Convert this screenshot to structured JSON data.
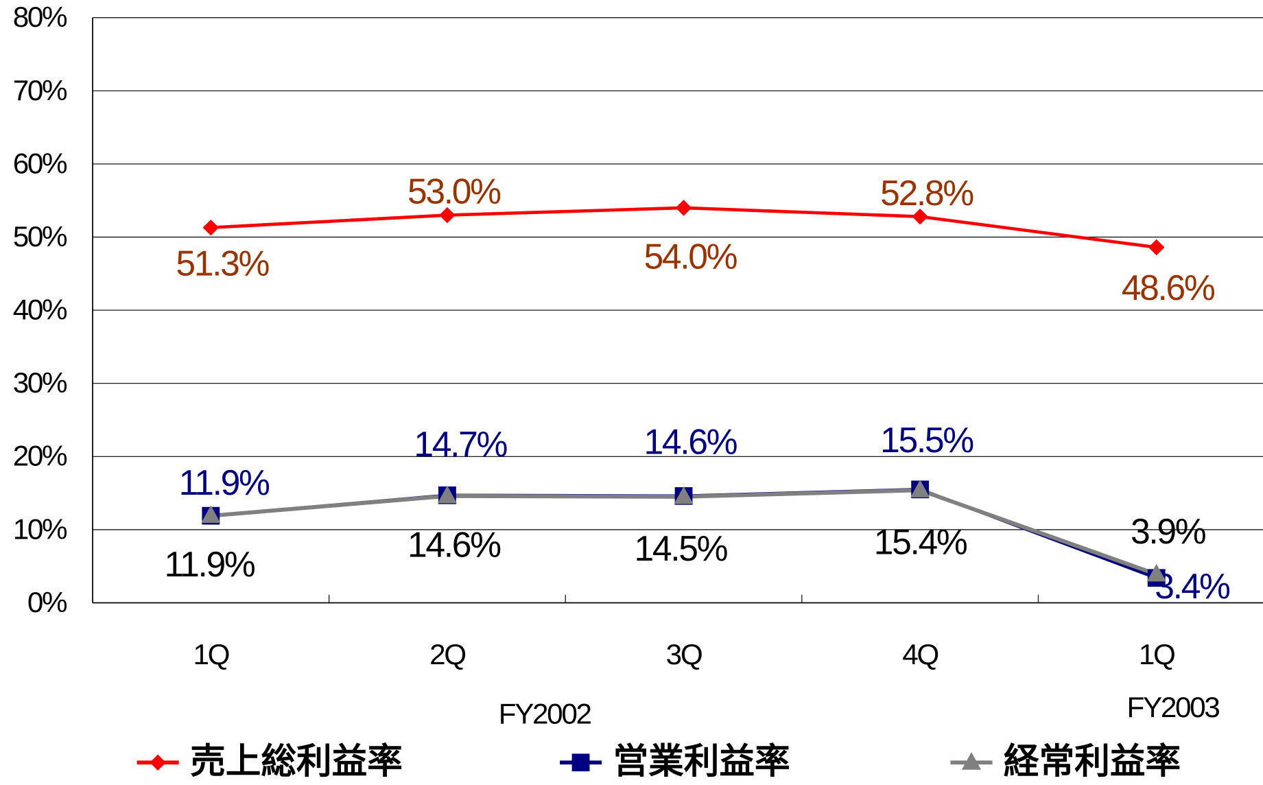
{
  "chart_data": {
    "type": "line",
    "categories": [
      "1Q",
      "2Q",
      "3Q",
      "4Q",
      "1Q"
    ],
    "group_labels": [
      "FY2002",
      "FY2003"
    ],
    "series": [
      {
        "name": "売上総利益率",
        "color": "#ff0000",
        "label_color": "#993300",
        "marker": "diamond",
        "values": [
          51.3,
          53.0,
          54.0,
          52.8,
          48.6
        ],
        "value_labels": [
          "51.3%",
          "53.0%",
          "54.0%",
          "52.8%",
          "48.6%"
        ]
      },
      {
        "name": "営業利益率",
        "color": "#000080",
        "label_color": "#000080",
        "marker": "square",
        "values": [
          11.9,
          14.7,
          14.6,
          15.5,
          3.4
        ],
        "value_labels": [
          "11.9%",
          "14.7%",
          "14.6%",
          "15.5%",
          "3.4%"
        ]
      },
      {
        "name": "経常利益率",
        "color": "#808080",
        "label_color": "#000000",
        "marker": "triangle",
        "values": [
          11.9,
          14.6,
          14.5,
          15.4,
          3.9
        ],
        "value_labels": [
          "11.9%",
          "14.6%",
          "14.5%",
          "15.4%",
          "3.9%"
        ]
      }
    ],
    "ylim": [
      0,
      80
    ],
    "yticks": [
      {
        "value": 0,
        "label": "0%"
      },
      {
        "value": 10,
        "label": "10%"
      },
      {
        "value": 20,
        "label": "20%"
      },
      {
        "value": 30,
        "label": "30%"
      },
      {
        "value": 40,
        "label": "40%"
      },
      {
        "value": 50,
        "label": "50%"
      },
      {
        "value": 60,
        "label": "60%"
      },
      {
        "value": 70,
        "label": "70%"
      },
      {
        "value": 80,
        "label": "80%"
      }
    ],
    "grid": true,
    "legend": "bottom"
  }
}
